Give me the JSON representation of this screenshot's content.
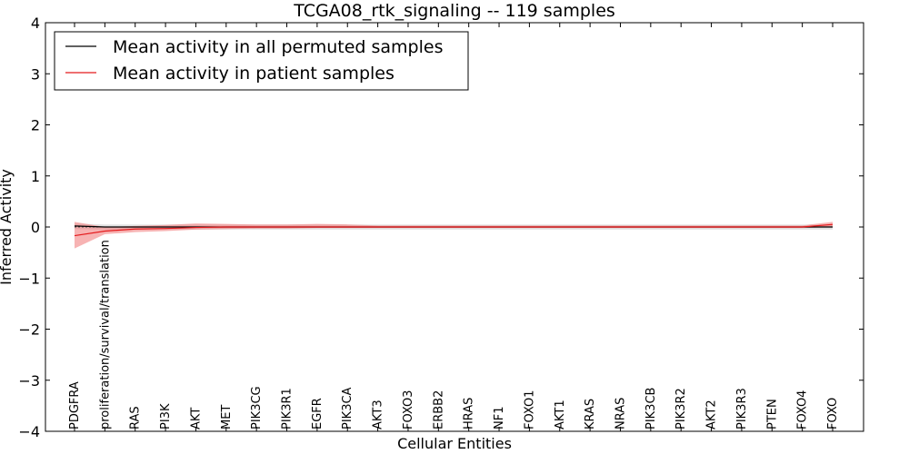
{
  "chart_data": {
    "type": "line",
    "title": "TCGA08_rtk_signaling -- 119 samples",
    "xlabel": "Cellular Entities",
    "ylabel": "Inferred Activity",
    "ylim": [
      -4,
      4
    ],
    "yticks": [
      -4,
      -3,
      -2,
      -1,
      0,
      1,
      2,
      3,
      4
    ],
    "ytick_labels": [
      "−4",
      "−3",
      "−2",
      "−1",
      "0",
      "1",
      "2",
      "3",
      "4"
    ],
    "grid": false,
    "legend_placement": "top-left",
    "categories": [
      "PDGFRA",
      "proliferation/survival/translation",
      "RAS",
      "PI3K",
      "AKT",
      "MET",
      "PIK3CG",
      "PIK3R1",
      "EGFR",
      "PIK3CA",
      "AKT3",
      "FOXO3",
      "ERBB2",
      "HRAS",
      "NF1",
      "FOXO1",
      "AKT1",
      "KRAS",
      "NRAS",
      "PIK3CB",
      "PIK3R2",
      "AKT2",
      "PIK3R3",
      "PTEN",
      "FOXO4",
      "FOXO"
    ],
    "series": [
      {
        "name": "Mean activity in all permuted samples",
        "color": "#000000",
        "band_color": "#bfbfbf",
        "values": [
          0.02,
          0.0,
          0.0,
          0.0,
          0.0,
          0.0,
          0.0,
          0.0,
          0.0,
          0.0,
          0.0,
          0.0,
          0.0,
          0.0,
          0.0,
          0.0,
          0.0,
          0.0,
          0.0,
          0.0,
          0.0,
          0.0,
          0.0,
          0.0,
          0.0,
          0.0
        ],
        "lower": [
          -0.04,
          -0.05,
          -0.05,
          -0.05,
          -0.05,
          -0.05,
          -0.05,
          -0.05,
          -0.05,
          -0.05,
          -0.05,
          -0.05,
          -0.05,
          -0.05,
          -0.05,
          -0.05,
          -0.05,
          -0.05,
          -0.05,
          -0.05,
          -0.05,
          -0.05,
          -0.05,
          -0.05,
          -0.05,
          -0.05
        ],
        "upper": [
          0.07,
          0.05,
          0.05,
          0.05,
          0.05,
          0.05,
          0.05,
          0.05,
          0.05,
          0.05,
          0.05,
          0.05,
          0.05,
          0.05,
          0.05,
          0.05,
          0.05,
          0.05,
          0.05,
          0.05,
          0.05,
          0.05,
          0.05,
          0.05,
          0.05,
          0.05
        ]
      },
      {
        "name": "Mean activity in patient samples",
        "color": "#e41a1c",
        "band_color": "#f28080",
        "values": [
          -0.17,
          -0.08,
          -0.04,
          -0.03,
          -0.01,
          0.0,
          0.0,
          0.0,
          0.0,
          0.0,
          0.0,
          0.0,
          0.0,
          0.0,
          0.0,
          0.0,
          0.0,
          0.0,
          0.0,
          0.0,
          0.0,
          0.0,
          0.0,
          0.0,
          0.0,
          0.05
        ],
        "lower": [
          -0.42,
          -0.14,
          -0.1,
          -0.08,
          -0.05,
          -0.04,
          -0.03,
          -0.03,
          -0.02,
          -0.02,
          -0.02,
          -0.02,
          -0.02,
          -0.02,
          -0.02,
          -0.02,
          -0.02,
          -0.02,
          -0.02,
          -0.02,
          -0.02,
          -0.02,
          -0.02,
          -0.02,
          -0.02,
          0.0
        ],
        "upper": [
          0.1,
          0.0,
          0.02,
          0.04,
          0.07,
          0.06,
          0.05,
          0.05,
          0.06,
          0.05,
          0.03,
          0.03,
          0.03,
          0.03,
          0.03,
          0.03,
          0.03,
          0.03,
          0.03,
          0.03,
          0.03,
          0.03,
          0.03,
          0.03,
          0.03,
          0.1
        ]
      }
    ]
  }
}
